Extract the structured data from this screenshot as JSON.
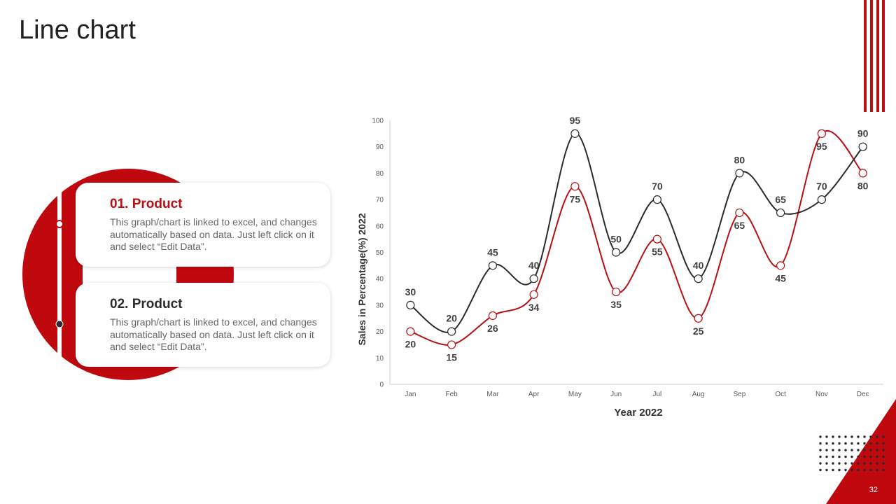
{
  "slide": {
    "title": "Line chart",
    "page_number": "32",
    "accent_color": "#b90f12",
    "dark_color": "#2b2b2b"
  },
  "cards": [
    {
      "title": "01. Product",
      "title_color": "#b90f12",
      "text": "This graph/chart is linked to excel, and changes automatically based on data. Just left click on it and select “Edit Data”."
    },
    {
      "title": "02. Product",
      "title_color": "#2b2b2b",
      "text": "This graph/chart is linked to excel, and changes automatically based on data. Just left click on it and select “Edit Data”."
    }
  ],
  "chart_data": {
    "type": "line",
    "title": "",
    "xlabel": "Year 2022",
    "ylabel": "Sales in Percentage(%) 2022",
    "categories": [
      "Jan",
      "Feb",
      "Mar",
      "Apr",
      "May",
      "Jun",
      "Jul",
      "Aug",
      "Sep",
      "Oct",
      "Nov",
      "Dec"
    ],
    "ylim": [
      0,
      100
    ],
    "yticks": [
      0,
      10,
      20,
      30,
      40,
      50,
      60,
      70,
      80,
      90,
      100
    ],
    "grid": false,
    "smooth": true,
    "series": [
      {
        "name": "Product 01",
        "color": "#b90f12",
        "label_position": "below",
        "values": [
          20,
          15,
          26,
          34,
          75,
          35,
          55,
          25,
          65,
          45,
          95,
          80
        ]
      },
      {
        "name": "Product 02",
        "color": "#2b2b2b",
        "label_position": "above",
        "values": [
          30,
          20,
          45,
          40,
          95,
          50,
          70,
          40,
          80,
          65,
          70,
          90
        ]
      }
    ]
  }
}
